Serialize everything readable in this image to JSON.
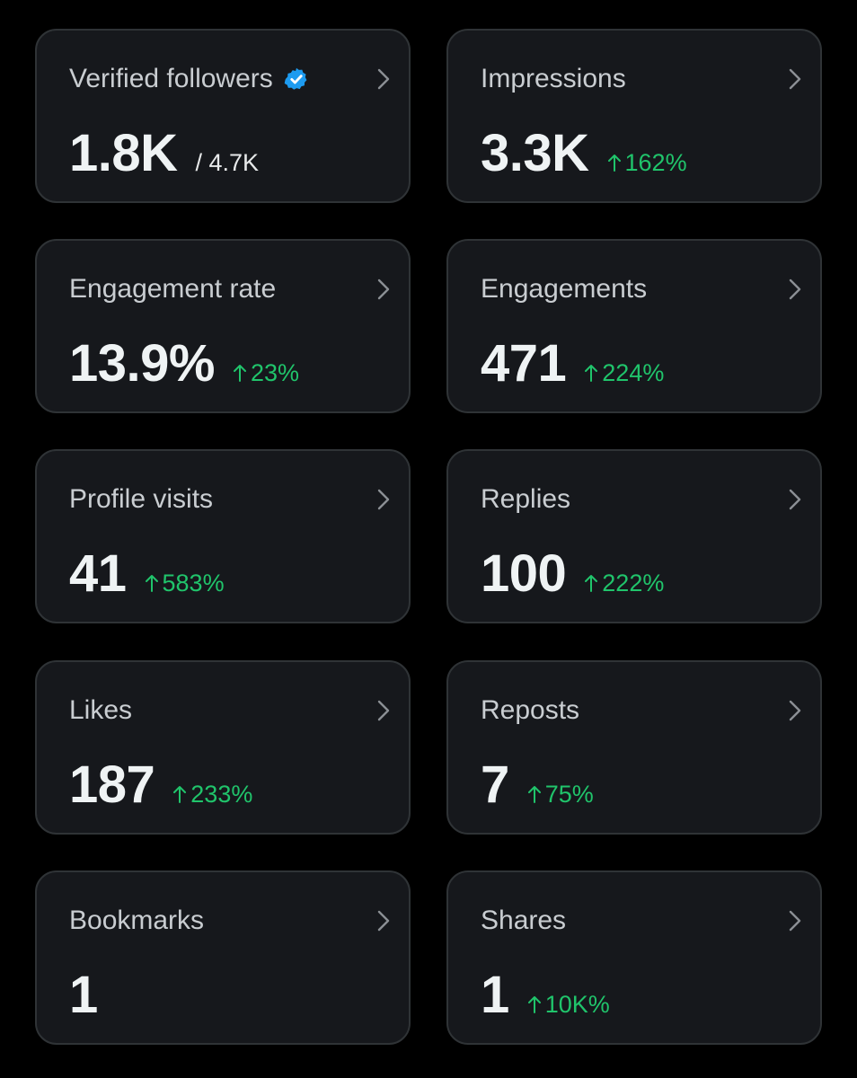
{
  "accent_color": "#20c46b",
  "verified_badge_color": "#1d9bf0",
  "cards": [
    {
      "title": "Verified followers",
      "value": "1.8K",
      "secondary": "/ 4.7K",
      "change": "",
      "badge": "verified-badge-icon"
    },
    {
      "title": "Impressions",
      "value": "3.3K",
      "secondary": "",
      "change": "162%"
    },
    {
      "title": "Engagement rate",
      "value": "13.9%",
      "secondary": "",
      "change": "23%"
    },
    {
      "title": "Engagements",
      "value": "471",
      "secondary": "",
      "change": "224%"
    },
    {
      "title": "Profile visits",
      "value": "41",
      "secondary": "",
      "change": "583%"
    },
    {
      "title": "Replies",
      "value": "100",
      "secondary": "",
      "change": "222%"
    },
    {
      "title": "Likes",
      "value": "187",
      "secondary": "",
      "change": "233%"
    },
    {
      "title": "Reposts",
      "value": "7",
      "secondary": "",
      "change": "75%"
    },
    {
      "title": "Bookmarks",
      "value": "1",
      "secondary": "",
      "change": ""
    },
    {
      "title": "Shares",
      "value": "1",
      "secondary": "",
      "change": "10K%"
    }
  ]
}
